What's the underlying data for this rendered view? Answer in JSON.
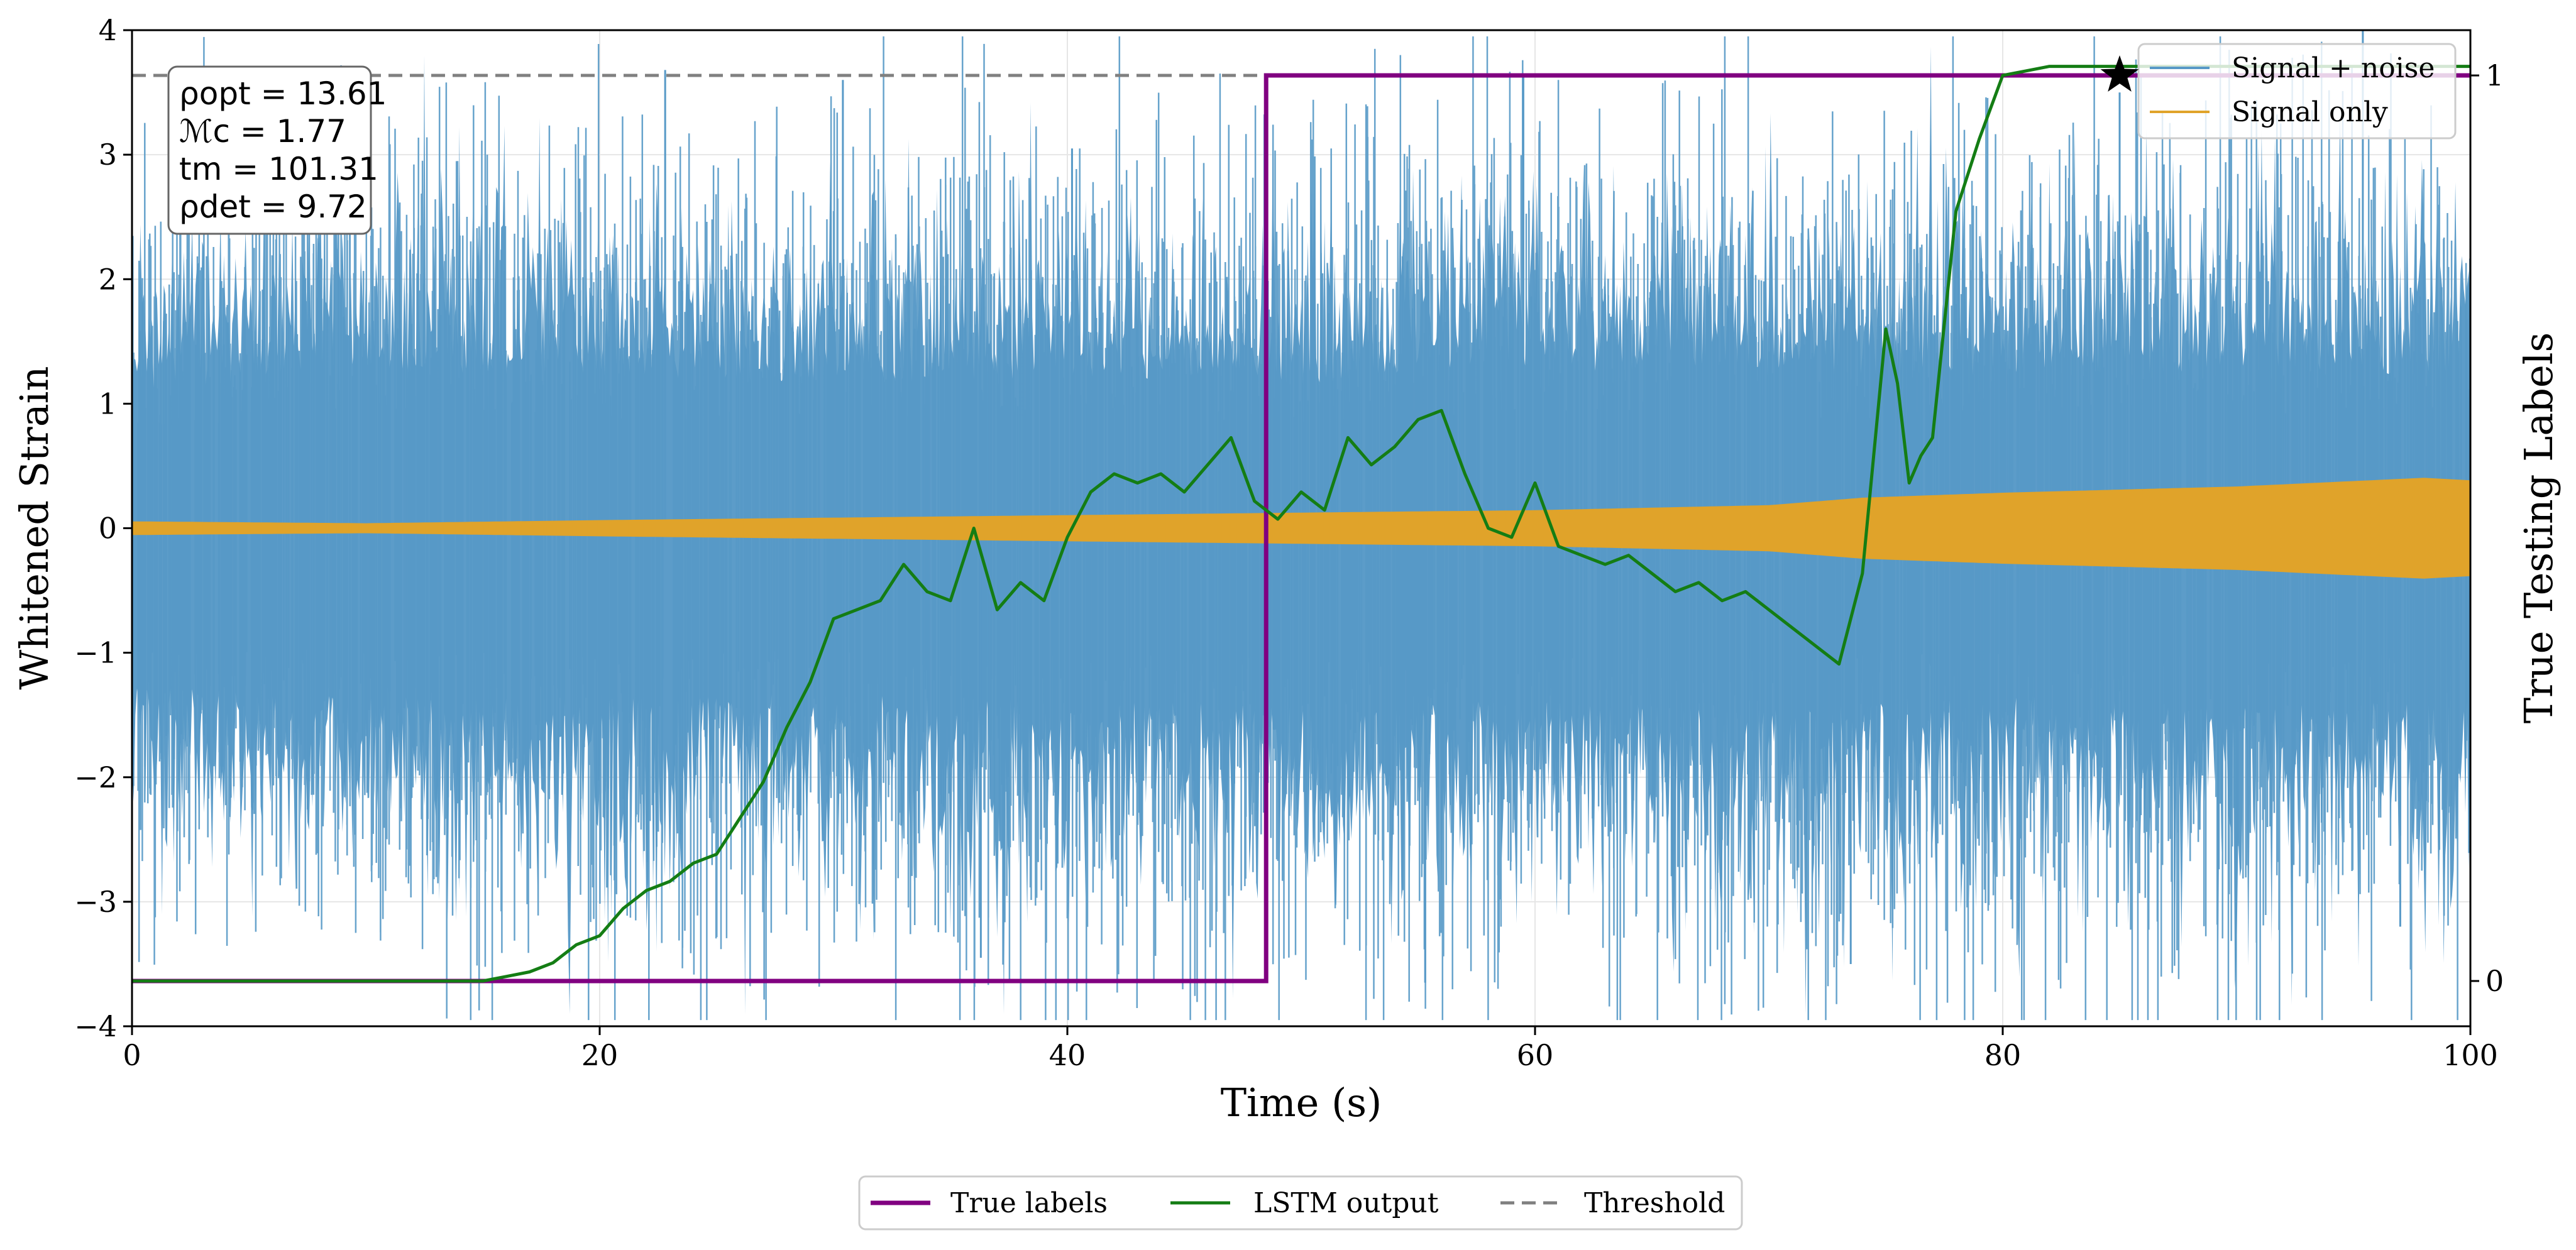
{
  "chart_data": {
    "type": "line",
    "xlabel": "Time (s)",
    "ylabel": "Whitened Strain",
    "y2label": "True Testing Labels",
    "xlim": [
      0,
      100
    ],
    "ylim": [
      -4,
      4
    ],
    "y2lim": [
      -0.05,
      1.05
    ],
    "xticks": [
      0,
      20,
      40,
      60,
      80,
      100
    ],
    "yticks": [
      -4,
      -3,
      -2,
      -1,
      0,
      1,
      2,
      3,
      4
    ],
    "y2ticks": [
      0,
      1
    ],
    "tick_labels": {
      "x": [
        "0",
        "20",
        "40",
        "60",
        "80",
        "100"
      ],
      "y": [
        "−4",
        "−3",
        "−2",
        "−1",
        "0",
        "1",
        "2",
        "3",
        "4"
      ],
      "y2": [
        "0",
        "1"
      ]
    },
    "grid": true,
    "series": [
      {
        "name": "Signal + noise",
        "axis": "left",
        "color": "#5799c7",
        "envelope_points": {
          "x": [
            0,
            10,
            20,
            30,
            40,
            50,
            60,
            70,
            80,
            90,
            100
          ],
          "ymax": [
            2.0,
            2.3,
            2.2,
            2.1,
            2.2,
            2.1,
            2.3,
            2.2,
            2.2,
            2.3,
            2.2
          ],
          "ymin": [
            -2.2,
            -2.4,
            -2.5,
            -2.4,
            -2.5,
            -2.6,
            -2.5,
            -2.6,
            -2.4,
            -2.6,
            -2.5
          ]
        },
        "spikes": {
          "x": [
            22.8,
            30.4,
            36.3,
            40.2,
            55.3,
            59.5,
            73.5,
            85.0,
            95.4,
            97.0
          ],
          "y": [
            3.68,
            3.6,
            -3.45,
            3.05,
            -3.65,
            3.65,
            -3.5,
            3.5,
            4.0,
            -3.2
          ]
        }
      },
      {
        "name": "Signal only",
        "axis": "left",
        "color": "#e0a32a",
        "envelope_points": {
          "x": [
            0,
            10,
            20,
            30,
            40,
            50,
            60,
            70,
            74,
            80,
            90,
            98,
            100
          ],
          "amp": [
            0.05,
            0.035,
            0.06,
            0.08,
            0.1,
            0.12,
            0.14,
            0.18,
            0.24,
            0.28,
            0.33,
            0.4,
            0.38
          ]
        }
      },
      {
        "name": "True labels",
        "axis": "right",
        "color": "#800080",
        "x": [
          0,
          48.5,
          48.5,
          100
        ],
        "y": [
          0,
          0,
          1,
          1
        ]
      },
      {
        "name": "LSTM output",
        "axis": "right",
        "color": "#147d14",
        "x": [
          0,
          15,
          16,
          17,
          18,
          19,
          20,
          21,
          22,
          23,
          24,
          25,
          26,
          27,
          28,
          29,
          30,
          31,
          32,
          33,
          34,
          35,
          36,
          37,
          38,
          39,
          40,
          41,
          42,
          43,
          44,
          45,
          46,
          47,
          48,
          49,
          50,
          51,
          52,
          53,
          54,
          55,
          56,
          57,
          58,
          59,
          60,
          61,
          62,
          63,
          64,
          65,
          66,
          67,
          68,
          69,
          70,
          71,
          72,
          73,
          74,
          75,
          75.5,
          76,
          76.5,
          77,
          78,
          79,
          80,
          81,
          82,
          83,
          85,
          90,
          95,
          100
        ],
        "y": [
          0,
          0,
          0.005,
          0.01,
          0.02,
          0.04,
          0.05,
          0.08,
          0.1,
          0.11,
          0.13,
          0.14,
          0.18,
          0.22,
          0.28,
          0.33,
          0.4,
          0.41,
          0.42,
          0.46,
          0.43,
          0.42,
          0.5,
          0.41,
          0.44,
          0.42,
          0.49,
          0.54,
          0.56,
          0.55,
          0.56,
          0.54,
          0.57,
          0.6,
          0.53,
          0.51,
          0.54,
          0.52,
          0.6,
          0.57,
          0.59,
          0.62,
          0.63,
          0.56,
          0.5,
          0.49,
          0.55,
          0.48,
          0.47,
          0.46,
          0.47,
          0.45,
          0.43,
          0.44,
          0.42,
          0.43,
          0.41,
          0.39,
          0.37,
          0.35,
          0.45,
          0.72,
          0.66,
          0.55,
          0.58,
          0.6,
          0.85,
          0.93,
          1.0,
          1.005,
          1.01,
          1.01,
          1.01,
          1.01,
          1.01,
          1.01
        ]
      },
      {
        "name": "Threshold",
        "axis": "right",
        "color": "#808080",
        "y": 1.0
      }
    ],
    "markers": [
      {
        "label": "star",
        "x": 85,
        "y": 1.0,
        "axis": "right",
        "color": "#000000"
      }
    ],
    "legend_upper": {
      "position": "upper-right",
      "entries": [
        "Signal + noise",
        "Signal only"
      ]
    },
    "legend_lower": {
      "position": "bottom-center",
      "entries": [
        "True labels",
        "LSTM output",
        "Threshold"
      ]
    },
    "info_box": {
      "position": "top-left",
      "lines": [
        "ρopt = 13.61",
        "ℳc = 1.77",
        "tm = 101.31",
        "ρdet = 9.72"
      ]
    }
  }
}
